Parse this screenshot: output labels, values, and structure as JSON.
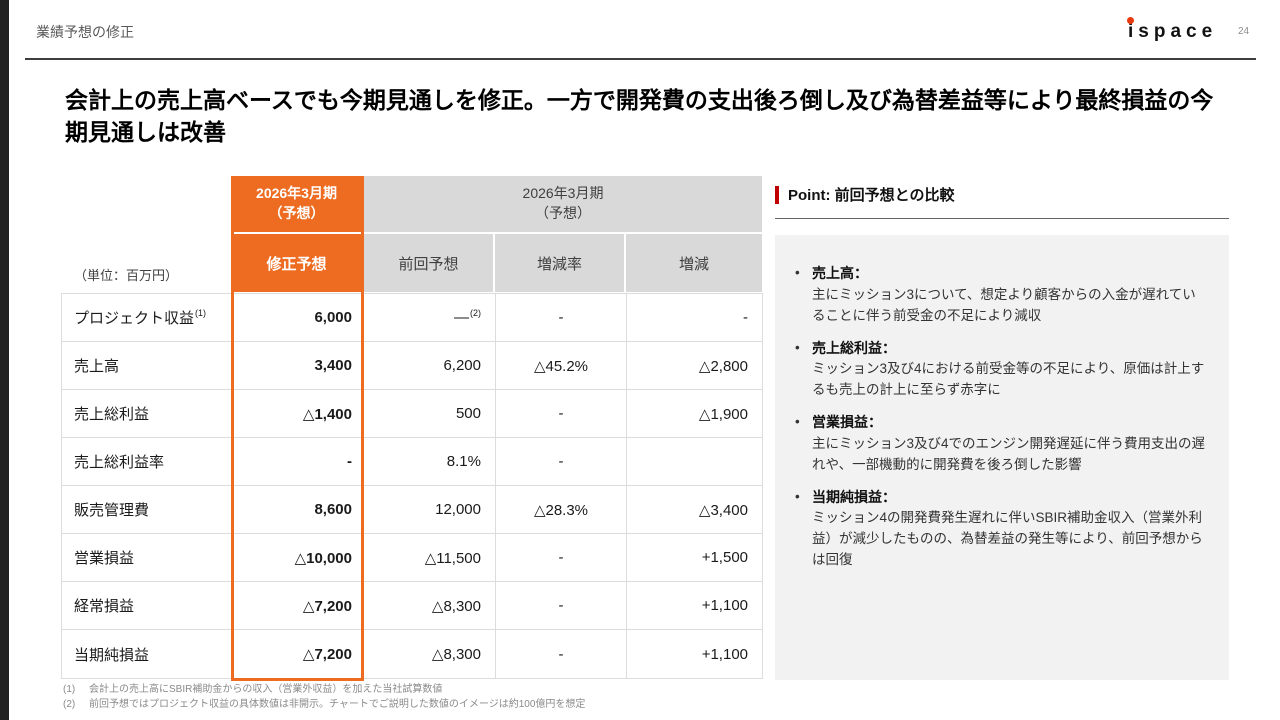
{
  "page": {
    "header_title": "業績予想の修正",
    "page_number": "24",
    "logo_text": "ispace"
  },
  "title": "会計上の売上高ベースでも今期見通しを修正。一方で開発費の支出後ろ倒し及び為替差益等により最終損益の今期見通しは改善",
  "table": {
    "unit_label": "（単位：百万円）",
    "group_revised": "2026年3月期\n（予想）",
    "group_previous": "2026年3月期\n（予想）",
    "col_revised": "修正予想",
    "col_previous": "前回予想",
    "col_rate": "増減率",
    "col_diff": "増減",
    "rows": [
      {
        "label": "プロジェクト収益",
        "label_sup": "(1)",
        "revised": "6,000",
        "previous": "—",
        "previous_sup": "(2)",
        "rate": "-",
        "diff": "-"
      },
      {
        "label": "売上高",
        "revised": "3,400",
        "previous": "6,200",
        "rate": "△45.2%",
        "diff": "△2,800"
      },
      {
        "label": "売上総利益",
        "revised": "△1,400",
        "previous": "500",
        "rate": "-",
        "diff": "△1,900"
      },
      {
        "label": "売上総利益率",
        "revised": "-",
        "previous": "8.1%",
        "rate": "-",
        "diff": ""
      },
      {
        "label": "販売管理費",
        "revised": "8,600",
        "previous": "12,000",
        "rate": "△28.3%",
        "diff": "△3,400"
      },
      {
        "label": "営業損益",
        "revised": "△10,000",
        "previous": "△11,500",
        "rate": "-",
        "diff": "+1,500"
      },
      {
        "label": "経常損益",
        "revised": "△7,200",
        "previous": "△8,300",
        "rate": "-",
        "diff": "+1,100"
      },
      {
        "label": "当期純損益",
        "revised": "△7,200",
        "previous": "△8,300",
        "rate": "-",
        "diff": "+1,100"
      }
    ]
  },
  "point": {
    "title": "Point: 前回予想との比較",
    "bullet_char": "•",
    "bullets": [
      {
        "heading": "売上高：",
        "body": "主にミッション3について、想定より顧客からの入金が遅れていることに伴う前受金の不足により減収"
      },
      {
        "heading": "売上総利益：",
        "body": "ミッション3及び4における前受金等の不足により、原価は計上するも売上の計上に至らず赤字に"
      },
      {
        "heading": "営業損益：",
        "body": "主にミッション3及び4でのエンジン開発遅延に伴う費用支出の遅れや、一部機動的に開発費を後ろ倒した影響"
      },
      {
        "heading": "当期純損益：",
        "body": "ミッション4の開発費発生遅れに伴いSBIR補助金収入（営業外利益）が減少したものの、為替差益の発生等により、前回予想からは回復"
      }
    ]
  },
  "footnotes": [
    {
      "marker": "(1)",
      "text": "会計上の売上高にSBIR補助金からの収入（営業外収益）を加えた当社試算数値"
    },
    {
      "marker": "(2)",
      "text": "前回予想ではプロジェクト収益の具体数値は非開示。チャートでご説明した数値のイメージは約100億円を想定"
    }
  ],
  "colors": {
    "accent_orange": "#ED6C21",
    "header_gray": "#D9D9D9",
    "point_red": "#C00000",
    "logo_red": "#E8380D"
  }
}
